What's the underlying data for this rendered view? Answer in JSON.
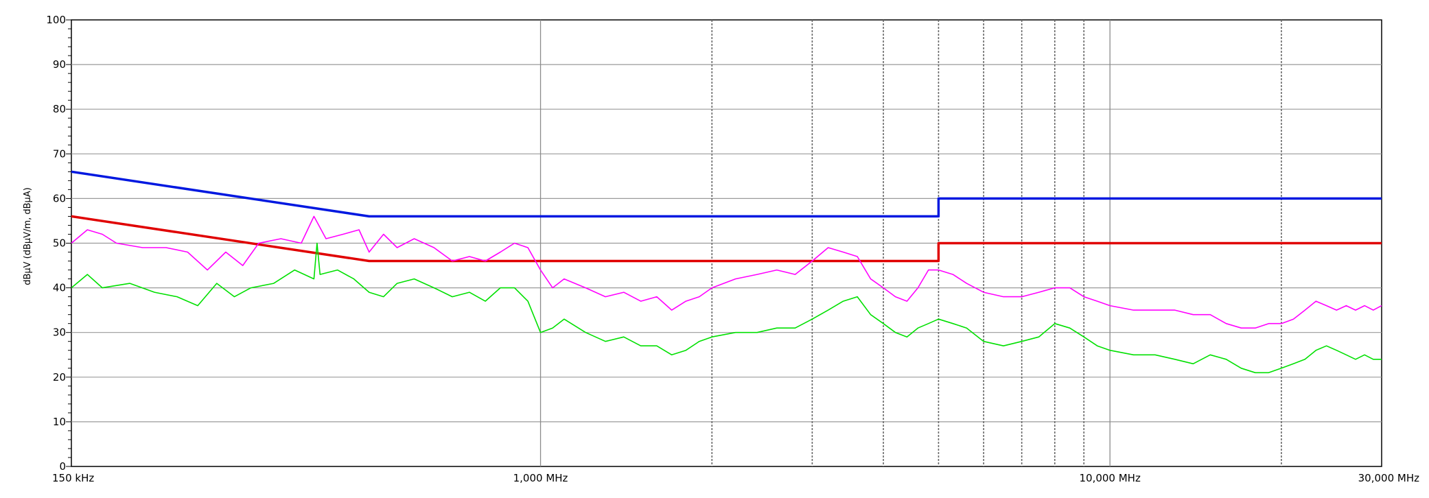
{
  "chart_data": {
    "type": "line",
    "title": "",
    "ylabel": "dBµV (dBµV/m, dBµA)",
    "xlabel": "",
    "x_scale": "log",
    "xlim_mhz": [
      0.15,
      30
    ],
    "ylim": [
      0,
      100
    ],
    "grid": true,
    "y_ticks": [
      "0",
      "10",
      "20",
      "30",
      "40",
      "50",
      "60",
      "70",
      "80",
      "90",
      "100"
    ],
    "x_tick_labels": [
      {
        "mhz": 0.15,
        "label": "150 kHz"
      },
      {
        "mhz": 1,
        "label": "1,000 MHz"
      },
      {
        "mhz": 10,
        "label": "10,000 MHz"
      },
      {
        "mhz": 30,
        "label": "30,000 MHz"
      }
    ],
    "x_gridlines_mhz": [
      1,
      2,
      3,
      4,
      5,
      6,
      7,
      8,
      9,
      10,
      20,
      30
    ],
    "series": [
      {
        "color": "#0018e0",
        "points": [
          [
            0.15,
            66
          ],
          [
            0.5,
            56
          ],
          [
            5,
            56
          ],
          [
            5,
            60
          ],
          [
            30,
            60
          ]
        ]
      },
      {
        "color": "#e00000",
        "points": [
          [
            0.15,
            56
          ],
          [
            0.5,
            46
          ],
          [
            5,
            46
          ],
          [
            5,
            50
          ],
          [
            30,
            50
          ]
        ]
      },
      {
        "color": "#ff00ff",
        "points": [
          [
            0.15,
            50
          ],
          [
            0.16,
            53
          ],
          [
            0.17,
            52
          ],
          [
            0.18,
            50
          ],
          [
            0.2,
            49
          ],
          [
            0.22,
            49
          ],
          [
            0.24,
            48
          ],
          [
            0.26,
            44
          ],
          [
            0.28,
            48
          ],
          [
            0.3,
            45
          ],
          [
            0.32,
            50
          ],
          [
            0.35,
            51
          ],
          [
            0.38,
            50
          ],
          [
            0.4,
            56
          ],
          [
            0.42,
            51
          ],
          [
            0.45,
            52
          ],
          [
            0.48,
            53
          ],
          [
            0.5,
            48
          ],
          [
            0.53,
            52
          ],
          [
            0.56,
            49
          ],
          [
            0.6,
            51
          ],
          [
            0.65,
            49
          ],
          [
            0.7,
            46
          ],
          [
            0.75,
            47
          ],
          [
            0.8,
            46
          ],
          [
            0.85,
            48
          ],
          [
            0.9,
            50
          ],
          [
            0.95,
            49
          ],
          [
            1.0,
            44
          ],
          [
            1.05,
            40
          ],
          [
            1.1,
            42
          ],
          [
            1.2,
            40
          ],
          [
            1.3,
            38
          ],
          [
            1.4,
            39
          ],
          [
            1.5,
            37
          ],
          [
            1.6,
            38
          ],
          [
            1.7,
            35
          ],
          [
            1.8,
            37
          ],
          [
            1.9,
            38
          ],
          [
            2.0,
            40
          ],
          [
            2.2,
            42
          ],
          [
            2.4,
            43
          ],
          [
            2.6,
            44
          ],
          [
            2.8,
            43
          ],
          [
            3.0,
            46
          ],
          [
            3.2,
            49
          ],
          [
            3.4,
            48
          ],
          [
            3.6,
            47
          ],
          [
            3.8,
            42
          ],
          [
            4.0,
            40
          ],
          [
            4.2,
            38
          ],
          [
            4.4,
            37
          ],
          [
            4.6,
            40
          ],
          [
            4.8,
            44
          ],
          [
            5.0,
            44
          ],
          [
            5.3,
            43
          ],
          [
            5.6,
            41
          ],
          [
            6.0,
            39
          ],
          [
            6.5,
            38
          ],
          [
            7.0,
            38
          ],
          [
            7.5,
            39
          ],
          [
            8.0,
            40
          ],
          [
            8.5,
            40
          ],
          [
            9.0,
            38
          ],
          [
            9.5,
            37
          ],
          [
            10,
            36
          ],
          [
            11,
            35
          ],
          [
            12,
            35
          ],
          [
            13,
            35
          ],
          [
            14,
            34
          ],
          [
            15,
            34
          ],
          [
            16,
            32
          ],
          [
            17,
            31
          ],
          [
            18,
            31
          ],
          [
            19,
            32
          ],
          [
            20,
            32
          ],
          [
            21,
            33
          ],
          [
            22,
            35
          ],
          [
            23,
            37
          ],
          [
            24,
            36
          ],
          [
            25,
            35
          ],
          [
            26,
            36
          ],
          [
            27,
            35
          ],
          [
            28,
            36
          ],
          [
            29,
            35
          ],
          [
            30,
            36
          ]
        ]
      },
      {
        "color": "#00e000",
        "points": [
          [
            0.15,
            40
          ],
          [
            0.16,
            43
          ],
          [
            0.17,
            40
          ],
          [
            0.19,
            41
          ],
          [
            0.21,
            39
          ],
          [
            0.23,
            38
          ],
          [
            0.25,
            36
          ],
          [
            0.27,
            41
          ],
          [
            0.29,
            38
          ],
          [
            0.31,
            40
          ],
          [
            0.34,
            41
          ],
          [
            0.37,
            44
          ],
          [
            0.4,
            42
          ],
          [
            0.405,
            50
          ],
          [
            0.41,
            43
          ],
          [
            0.44,
            44
          ],
          [
            0.47,
            42
          ],
          [
            0.5,
            39
          ],
          [
            0.53,
            38
          ],
          [
            0.56,
            41
          ],
          [
            0.6,
            42
          ],
          [
            0.65,
            40
          ],
          [
            0.7,
            38
          ],
          [
            0.75,
            39
          ],
          [
            0.8,
            37
          ],
          [
            0.85,
            40
          ],
          [
            0.9,
            40
          ],
          [
            0.95,
            37
          ],
          [
            1.0,
            30
          ],
          [
            1.05,
            31
          ],
          [
            1.1,
            33
          ],
          [
            1.2,
            30
          ],
          [
            1.3,
            28
          ],
          [
            1.4,
            29
          ],
          [
            1.5,
            27
          ],
          [
            1.6,
            27
          ],
          [
            1.7,
            25
          ],
          [
            1.8,
            26
          ],
          [
            1.9,
            28
          ],
          [
            2.0,
            29
          ],
          [
            2.2,
            30
          ],
          [
            2.4,
            30
          ],
          [
            2.6,
            31
          ],
          [
            2.8,
            31
          ],
          [
            3.0,
            33
          ],
          [
            3.2,
            35
          ],
          [
            3.4,
            37
          ],
          [
            3.6,
            38
          ],
          [
            3.8,
            34
          ],
          [
            4.0,
            32
          ],
          [
            4.2,
            30
          ],
          [
            4.4,
            29
          ],
          [
            4.6,
            31
          ],
          [
            4.8,
            32
          ],
          [
            5.0,
            33
          ],
          [
            5.3,
            32
          ],
          [
            5.6,
            31
          ],
          [
            6.0,
            28
          ],
          [
            6.5,
            27
          ],
          [
            7.0,
            28
          ],
          [
            7.5,
            29
          ],
          [
            8.0,
            32
          ],
          [
            8.5,
            31
          ],
          [
            9.0,
            29
          ],
          [
            9.5,
            27
          ],
          [
            10,
            26
          ],
          [
            11,
            25
          ],
          [
            12,
            25
          ],
          [
            13,
            24
          ],
          [
            14,
            23
          ],
          [
            15,
            25
          ],
          [
            16,
            24
          ],
          [
            17,
            22
          ],
          [
            18,
            21
          ],
          [
            19,
            21
          ],
          [
            20,
            22
          ],
          [
            21,
            23
          ],
          [
            22,
            24
          ],
          [
            23,
            26
          ],
          [
            24,
            27
          ],
          [
            25,
            26
          ],
          [
            26,
            25
          ],
          [
            27,
            24
          ],
          [
            28,
            25
          ],
          [
            29,
            24
          ],
          [
            30,
            24
          ]
        ]
      }
    ]
  }
}
